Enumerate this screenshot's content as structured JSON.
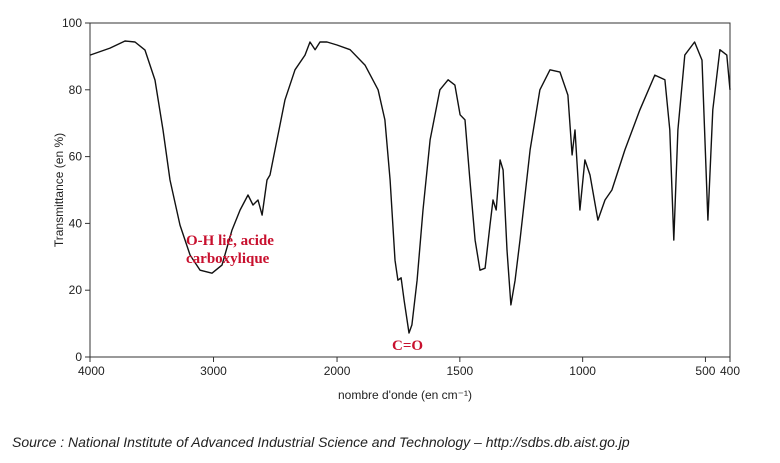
{
  "chart_data": {
    "type": "line",
    "color": "#111111",
    "ylabel": "Transmittance (en %)",
    "xlabel": "nombre d'onde (en cm⁻¹)",
    "xlim": [
      4000,
      400
    ],
    "ylim": [
      0,
      100
    ],
    "x_scale_change_at": 2000,
    "xticks": [
      4000,
      3000,
      2000,
      1500,
      1000,
      500,
      400
    ],
    "yticks": [
      0,
      20,
      40,
      60,
      80,
      100
    ],
    "annotations": [
      {
        "lines": [
          "O-H lié, acide",
          "carboxylique"
        ]
      },
      {
        "lines": [
          "C=O"
        ]
      }
    ],
    "source": "Source : National Institute of Advanced Industrial Science and Technology – http://sdbs.db.aist.go.jp",
    "x": [
      4000,
      3838,
      3717,
      3636,
      3555,
      3474,
      3409,
      3352,
      3271,
      3190,
      3109,
      3012,
      2931,
      2850,
      2785,
      2721,
      2680,
      2640,
      2607,
      2567,
      2543,
      2502,
      2421,
      2340,
      2259,
      2219,
      2178,
      2138,
      2081,
      2000,
      1947,
      1886,
      1833,
      1805,
      1784,
      1764,
      1752,
      1739,
      1727,
      1707,
      1695,
      1674,
      1650,
      1621,
      1581,
      1548,
      1520,
      1499,
      1479,
      1459,
      1438,
      1418,
      1397,
      1377,
      1365,
      1352,
      1336,
      1324,
      1308,
      1292,
      1275,
      1255,
      1214,
      1174,
      1133,
      1092,
      1060,
      1043,
      1031,
      1011,
      991,
      970,
      938,
      909,
      881,
      828,
      767,
      706,
      665,
      645,
      629,
      612,
      584,
      544,
      514,
      490,
      470,
      441,
      413,
      400
    ],
    "values": [
      90.4,
      92.5,
      94.6,
      94.3,
      91.9,
      82.9,
      68,
      53,
      39.5,
      30.5,
      26,
      25.1,
      27.5,
      38,
      44,
      48.5,
      45.5,
      47,
      42.5,
      53,
      54.5,
      62,
      77,
      86,
      90.4,
      94.3,
      92,
      94.3,
      94.3,
      93.4,
      92,
      87.4,
      80,
      71,
      53,
      29,
      23,
      23.7,
      17,
      7.2,
      9.6,
      23,
      44,
      65,
      80,
      83,
      81.4,
      72.5,
      71,
      53,
      35,
      26,
      26.6,
      39.5,
      47,
      44,
      59,
      56,
      32,
      15.6,
      23,
      35,
      62,
      80,
      86,
      85.3,
      78.4,
      60.5,
      68,
      44,
      59,
      54.5,
      41,
      47,
      50,
      62,
      74,
      84.4,
      83,
      68,
      35,
      68,
      90.4,
      94.3,
      88.9,
      41,
      74,
      92,
      90.4,
      80
    ]
  }
}
